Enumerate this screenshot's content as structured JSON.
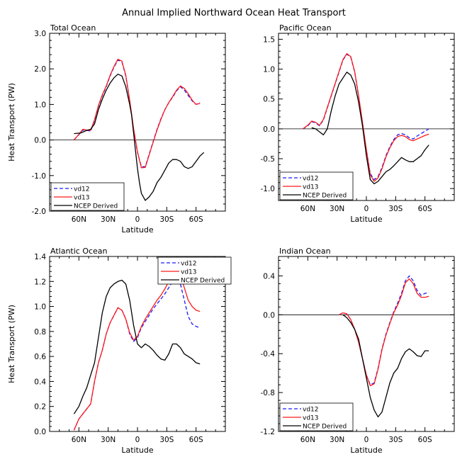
{
  "title": "Annual Implied Northward Ocean Heat Transport",
  "colors": {
    "vd12": "#1a1aff",
    "vd13": "#ff1a1a",
    "ncep": "#000000"
  },
  "chart_data": [
    {
      "type": "line",
      "title": "Total Ocean",
      "xlabel": "Latitude",
      "ylabel": "Heat Transport (PW)",
      "xlim": [
        90,
        -90
      ],
      "xticks": [
        {
          "v": 60,
          "label": "60N"
        },
        {
          "v": 30,
          "label": "30N"
        },
        {
          "v": 0,
          "label": "0"
        },
        {
          "v": -30,
          "label": "30S"
        },
        {
          "v": -60,
          "label": "60S"
        }
      ],
      "ylim": [
        -2.0,
        3.0
      ],
      "yticks": [
        {
          "v": -2.0,
          "label": "-2.0"
        },
        {
          "v": -1.0,
          "label": "-1.0"
        },
        {
          "v": 0.0,
          "label": "0.0"
        },
        {
          "v": 1.0,
          "label": "1.0"
        },
        {
          "v": 2.0,
          "label": "2.0"
        },
        {
          "v": 3.0,
          "label": "3.0"
        }
      ],
      "zero_line": true,
      "legend": "bottom-left",
      "series": [
        {
          "name": "vd12",
          "color": "#1a1aff",
          "dash": true,
          "x": [
            65,
            60,
            56,
            52,
            48,
            44,
            40,
            36,
            32,
            28,
            24,
            20,
            16,
            12,
            8,
            4,
            0,
            -4,
            -8,
            -12,
            -16,
            -20,
            -24,
            -28,
            -32,
            -36,
            -40,
            -44,
            -48,
            -52,
            -56,
            -60,
            -64
          ],
          "y": [
            0.0,
            0.15,
            0.28,
            0.27,
            0.25,
            0.55,
            0.95,
            1.25,
            1.5,
            1.8,
            2.05,
            2.25,
            2.2,
            1.8,
            1.1,
            0.3,
            -0.35,
            -0.75,
            -0.75,
            -0.4,
            -0.05,
            0.3,
            0.6,
            0.85,
            1.05,
            1.2,
            1.38,
            1.5,
            1.4,
            1.25,
            1.1,
            1.0,
            1.05
          ]
        },
        {
          "name": "vd13",
          "color": "#ff1a1a",
          "dash": false,
          "x": [
            65,
            60,
            56,
            52,
            48,
            44,
            40,
            36,
            32,
            28,
            24,
            20,
            16,
            12,
            8,
            4,
            0,
            -4,
            -8,
            -12,
            -16,
            -20,
            -24,
            -28,
            -32,
            -36,
            -40,
            -44,
            -48,
            -52,
            -56,
            -60,
            -64
          ],
          "y": [
            0.0,
            0.16,
            0.3,
            0.28,
            0.27,
            0.57,
            0.97,
            1.27,
            1.52,
            1.82,
            2.07,
            2.27,
            2.22,
            1.82,
            1.12,
            0.32,
            -0.33,
            -0.78,
            -0.77,
            -0.42,
            -0.07,
            0.28,
            0.58,
            0.85,
            1.05,
            1.22,
            1.4,
            1.52,
            1.45,
            1.3,
            1.12,
            1.0,
            1.03
          ]
        },
        {
          "name": "NCEP Derived",
          "color": "#000000",
          "dash": false,
          "x": [
            65,
            58,
            52,
            48,
            44,
            40,
            36,
            32,
            28,
            24,
            20,
            16,
            12,
            8,
            6,
            4,
            2,
            0,
            -2,
            -4,
            -6,
            -8,
            -12,
            -16,
            -20,
            -24,
            -28,
            -32,
            -36,
            -40,
            -44,
            -48,
            -52,
            -56,
            -60,
            -64,
            -68
          ],
          "y": [
            0.18,
            0.2,
            0.27,
            0.3,
            0.45,
            0.85,
            1.15,
            1.4,
            1.6,
            1.75,
            1.85,
            1.8,
            1.5,
            1.0,
            0.7,
            0.2,
            -0.3,
            -0.8,
            -1.2,
            -1.5,
            -1.6,
            -1.7,
            -1.6,
            -1.45,
            -1.2,
            -1.05,
            -0.85,
            -0.65,
            -0.55,
            -0.55,
            -0.6,
            -0.75,
            -0.8,
            -0.75,
            -0.6,
            -0.45,
            -0.35
          ]
        }
      ]
    },
    {
      "type": "line",
      "title": "Pacific Ocean",
      "xlabel": "Latitude",
      "ylabel": "",
      "xlim": [
        90,
        -90
      ],
      "xticks": [
        {
          "v": 60,
          "label": "60N"
        },
        {
          "v": 30,
          "label": "30N"
        },
        {
          "v": 0,
          "label": "0"
        },
        {
          "v": -30,
          "label": "30S"
        },
        {
          "v": -60,
          "label": "60S"
        }
      ],
      "ylim": [
        -1.2,
        1.6
      ],
      "yticks": [
        {
          "v": -1.0,
          "label": "-1.0"
        },
        {
          "v": -0.5,
          "label": "-0.5"
        },
        {
          "v": 0.0,
          "label": "0.0"
        },
        {
          "v": 0.5,
          "label": "0.5"
        },
        {
          "v": 1.0,
          "label": "1.0"
        },
        {
          "v": 1.5,
          "label": "1.5"
        }
      ],
      "zero_line": true,
      "legend": "bottom-left",
      "series": [
        {
          "name": "vd12",
          "color": "#1a1aff",
          "dash": true,
          "x": [
            65,
            60,
            56,
            52,
            48,
            44,
            40,
            36,
            32,
            28,
            24,
            20,
            16,
            12,
            8,
            4,
            0,
            -4,
            -8,
            -12,
            -16,
            -20,
            -24,
            -28,
            -32,
            -36,
            -40,
            -44,
            -48,
            -52,
            -56,
            -60,
            -64
          ],
          "y": [
            0.0,
            0.05,
            0.12,
            0.1,
            0.05,
            0.15,
            0.35,
            0.55,
            0.75,
            0.95,
            1.15,
            1.25,
            1.2,
            0.95,
            0.55,
            0.1,
            -0.35,
            -0.75,
            -0.85,
            -0.8,
            -0.65,
            -0.45,
            -0.3,
            -0.18,
            -0.1,
            -0.08,
            -0.1,
            -0.15,
            -0.17,
            -0.12,
            -0.08,
            -0.04,
            0.0
          ]
        },
        {
          "name": "vd13",
          "color": "#ff1a1a",
          "dash": false,
          "x": [
            65,
            60,
            56,
            52,
            48,
            44,
            40,
            36,
            32,
            28,
            24,
            20,
            16,
            12,
            8,
            4,
            0,
            -4,
            -8,
            -12,
            -16,
            -20,
            -24,
            -28,
            -32,
            -36,
            -40,
            -44,
            -48,
            -52,
            -56,
            -60,
            -64
          ],
          "y": [
            0.0,
            0.06,
            0.13,
            0.11,
            0.06,
            0.16,
            0.36,
            0.56,
            0.76,
            0.96,
            1.16,
            1.26,
            1.21,
            0.96,
            0.56,
            0.11,
            -0.35,
            -0.77,
            -0.88,
            -0.82,
            -0.67,
            -0.47,
            -0.32,
            -0.2,
            -0.13,
            -0.11,
            -0.13,
            -0.18,
            -0.2,
            -0.17,
            -0.14,
            -0.11,
            -0.09
          ]
        },
        {
          "name": "NCEP Derived",
          "color": "#000000",
          "dash": false,
          "x": [
            56,
            52,
            48,
            44,
            40,
            36,
            32,
            28,
            24,
            20,
            16,
            12,
            8,
            4,
            0,
            -4,
            -8,
            -12,
            -16,
            -20,
            -24,
            -28,
            -32,
            -36,
            -40,
            -44,
            -48,
            -52,
            -56,
            -60,
            -64
          ],
          "y": [
            0.02,
            0.0,
            -0.05,
            -0.1,
            0.0,
            0.3,
            0.55,
            0.75,
            0.85,
            0.95,
            0.9,
            0.75,
            0.45,
            0.05,
            -0.45,
            -0.85,
            -0.92,
            -0.88,
            -0.8,
            -0.72,
            -0.68,
            -0.62,
            -0.55,
            -0.48,
            -0.52,
            -0.55,
            -0.55,
            -0.5,
            -0.45,
            -0.35,
            -0.27
          ]
        }
      ]
    },
    {
      "type": "line",
      "title": "Atlantic Ocean",
      "xlabel": "Latitude",
      "ylabel": "Heat Transport (PW)",
      "xlim": [
        90,
        -90
      ],
      "xticks": [
        {
          "v": 60,
          "label": "60N"
        },
        {
          "v": 30,
          "label": "30N"
        },
        {
          "v": 0,
          "label": "0"
        },
        {
          "v": -30,
          "label": "30S"
        },
        {
          "v": -60,
          "label": "60S"
        }
      ],
      "ylim": [
        0.0,
        1.4
      ],
      "yticks": [
        {
          "v": 0.0,
          "label": "0.0"
        },
        {
          "v": 0.2,
          "label": "0.2"
        },
        {
          "v": 0.4,
          "label": "0.4"
        },
        {
          "v": 0.6,
          "label": "0.6"
        },
        {
          "v": 0.8,
          "label": "0.8"
        },
        {
          "v": 1.0,
          "label": "1.0"
        },
        {
          "v": 1.2,
          "label": "1.2"
        },
        {
          "v": 1.4,
          "label": "1.4"
        }
      ],
      "zero_line": false,
      "legend": "top-right",
      "series": [
        {
          "name": "vd12",
          "color": "#1a1aff",
          "dash": true,
          "x": [
            65,
            60,
            56,
            52,
            48,
            44,
            40,
            36,
            32,
            28,
            24,
            20,
            16,
            12,
            8,
            4,
            0,
            -4,
            -8,
            -12,
            -16,
            -20,
            -24,
            -28,
            -32,
            -36,
            -40,
            -44,
            -48,
            -52,
            -56,
            -60,
            -64
          ],
          "y": [
            0.01,
            0.1,
            0.14,
            0.18,
            0.22,
            0.4,
            0.55,
            0.65,
            0.78,
            0.87,
            0.93,
            0.99,
            0.97,
            0.9,
            0.78,
            0.72,
            0.75,
            0.83,
            0.88,
            0.93,
            0.98,
            1.02,
            1.06,
            1.1,
            1.15,
            1.2,
            1.23,
            1.18,
            1.05,
            0.92,
            0.86,
            0.84,
            0.83
          ]
        },
        {
          "name": "vd13",
          "color": "#ff1a1a",
          "dash": false,
          "x": [
            65,
            60,
            56,
            52,
            48,
            44,
            40,
            36,
            32,
            28,
            24,
            20,
            16,
            12,
            8,
            4,
            0,
            -4,
            -8,
            -12,
            -16,
            -20,
            -24,
            -28,
            -32,
            -36,
            -40,
            -44,
            -48,
            -52,
            -56,
            -60,
            -64
          ],
          "y": [
            0.01,
            0.1,
            0.14,
            0.18,
            0.22,
            0.4,
            0.55,
            0.65,
            0.78,
            0.87,
            0.93,
            0.99,
            0.97,
            0.9,
            0.79,
            0.73,
            0.76,
            0.84,
            0.9,
            0.95,
            1.0,
            1.05,
            1.09,
            1.14,
            1.2,
            1.25,
            1.28,
            1.25,
            1.15,
            1.05,
            1.0,
            0.97,
            0.96
          ]
        },
        {
          "name": "NCEP Derived",
          "color": "#000000",
          "dash": false,
          "x": [
            65,
            60,
            56,
            52,
            48,
            44,
            40,
            36,
            32,
            28,
            24,
            20,
            16,
            12,
            8,
            4,
            0,
            -4,
            -8,
            -12,
            -16,
            -20,
            -24,
            -28,
            -32,
            -36,
            -40,
            -44,
            -48,
            -52,
            -56,
            -60,
            -64
          ],
          "y": [
            0.14,
            0.2,
            0.28,
            0.35,
            0.45,
            0.55,
            0.75,
            0.95,
            1.08,
            1.15,
            1.18,
            1.2,
            1.21,
            1.18,
            1.05,
            0.85,
            0.7,
            0.67,
            0.7,
            0.68,
            0.65,
            0.61,
            0.58,
            0.57,
            0.62,
            0.7,
            0.7,
            0.67,
            0.62,
            0.6,
            0.58,
            0.55,
            0.54
          ]
        }
      ]
    },
    {
      "type": "line",
      "title": "Indian Ocean",
      "xlabel": "Latitude",
      "ylabel": "",
      "xlim": [
        90,
        -90
      ],
      "xticks": [
        {
          "v": 60,
          "label": "60N"
        },
        {
          "v": 30,
          "label": "30N"
        },
        {
          "v": 0,
          "label": "0"
        },
        {
          "v": -30,
          "label": "30S"
        },
        {
          "v": -60,
          "label": "60S"
        }
      ],
      "ylim": [
        -1.2,
        0.6
      ],
      "yticks": [
        {
          "v": -1.2,
          "label": "-1.2"
        },
        {
          "v": -0.8,
          "label": "-0.8"
        },
        {
          "v": -0.4,
          "label": "-0.4"
        },
        {
          "v": 0.0,
          "label": "0.0"
        },
        {
          "v": 0.4,
          "label": "0.4"
        }
      ],
      "zero_line": true,
      "legend": "bottom-left",
      "series": [
        {
          "name": "vd12",
          "color": "#1a1aff",
          "dash": true,
          "x": [
            28,
            24,
            20,
            16,
            12,
            8,
            4,
            0,
            -4,
            -8,
            -12,
            -16,
            -20,
            -24,
            -28,
            -32,
            -36,
            -40,
            -44,
            -48,
            -52,
            -56,
            -60,
            -64
          ],
          "y": [
            0.0,
            0.02,
            0.01,
            -0.05,
            -0.15,
            -0.28,
            -0.45,
            -0.62,
            -0.72,
            -0.7,
            -0.55,
            -0.35,
            -0.2,
            -0.08,
            0.03,
            0.12,
            0.22,
            0.35,
            0.4,
            0.35,
            0.25,
            0.2,
            0.22,
            0.23
          ]
        },
        {
          "name": "vd13",
          "color": "#ff1a1a",
          "dash": false,
          "x": [
            28,
            24,
            20,
            16,
            12,
            8,
            4,
            0,
            -4,
            -8,
            -12,
            -16,
            -20,
            -24,
            -28,
            -32,
            -36,
            -40,
            -44,
            -48,
            -52,
            -56,
            -60,
            -64
          ],
          "y": [
            0.0,
            0.02,
            0.01,
            -0.05,
            -0.15,
            -0.28,
            -0.45,
            -0.62,
            -0.73,
            -0.71,
            -0.56,
            -0.36,
            -0.21,
            -0.09,
            0.02,
            0.1,
            0.2,
            0.33,
            0.37,
            0.32,
            0.22,
            0.18,
            0.18,
            0.19
          ]
        },
        {
          "name": "NCEP Derived",
          "color": "#000000",
          "dash": false,
          "x": [
            24,
            20,
            16,
            12,
            8,
            4,
            0,
            -4,
            -8,
            -12,
            -16,
            -20,
            -24,
            -28,
            -32,
            -36,
            -40,
            -44,
            -48,
            -52,
            -56,
            -60,
            -64
          ],
          "y": [
            0.0,
            -0.03,
            -0.08,
            -0.15,
            -0.25,
            -0.45,
            -0.65,
            -0.85,
            -0.98,
            -1.05,
            -1.0,
            -0.85,
            -0.7,
            -0.6,
            -0.55,
            -0.45,
            -0.38,
            -0.35,
            -0.38,
            -0.42,
            -0.43,
            -0.37,
            -0.37
          ]
        }
      ]
    }
  ]
}
